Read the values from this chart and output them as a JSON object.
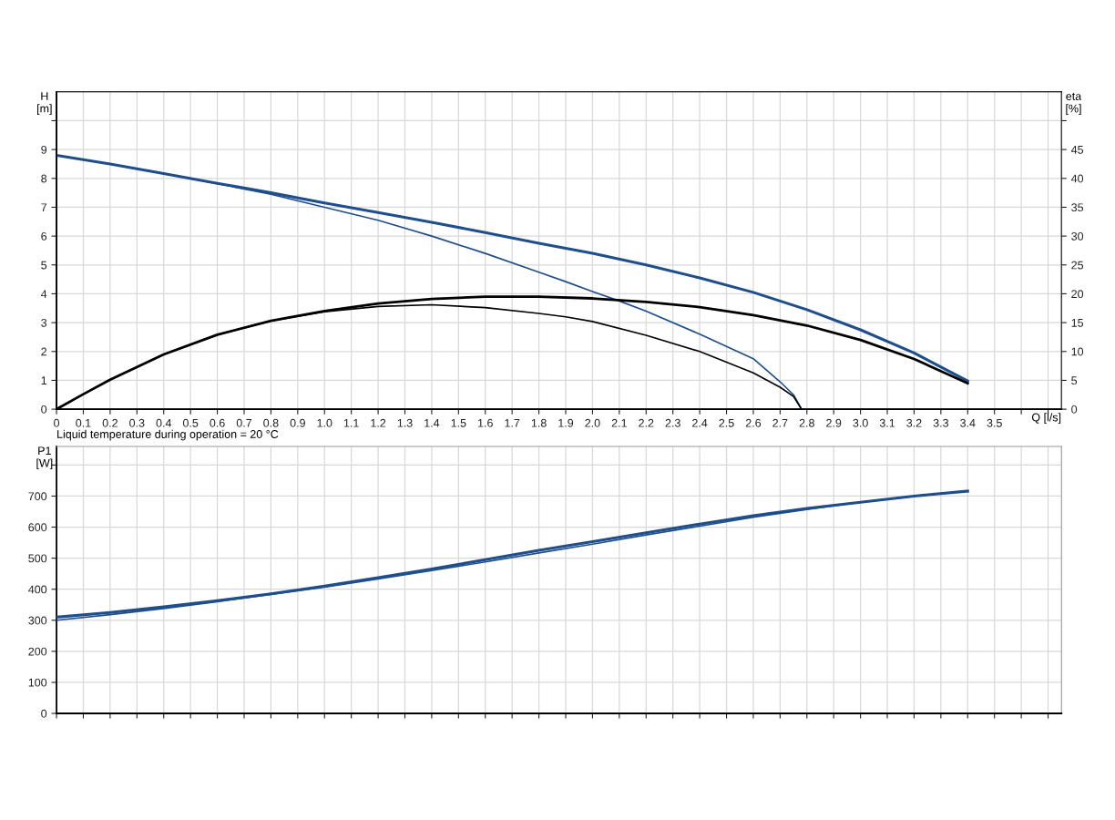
{
  "chart_data": [
    {
      "type": "line",
      "xlabel": "Q [l/s]",
      "ylabel": "H\n[m]",
      "y2label": "eta\n[%]",
      "annotations": [
        "Liquid temperature during operation = 20 °C"
      ],
      "xlim": [
        0,
        3.75
      ],
      "xticks": [
        0,
        0.1,
        0.2,
        0.3,
        0.4,
        0.5,
        0.6,
        0.7,
        0.8,
        0.9,
        {
          "value": 1.0,
          "label": "1.0"
        },
        1.1,
        1.2,
        1.3,
        1.4,
        1.5,
        1.6,
        1.7,
        1.8,
        1.9,
        {
          "value": 2.0,
          "label": "2.0"
        },
        2.1,
        2.2,
        2.3,
        2.4,
        2.5,
        2.6,
        2.7,
        2.8,
        2.9,
        {
          "value": 3.0,
          "label": "3.0"
        },
        3.1,
        3.2,
        3.3,
        3.4,
        3.5,
        {
          "value": 3.6,
          "label": null
        },
        {
          "value": 3.7,
          "label": null
        }
      ],
      "ylim": [
        0,
        11
      ],
      "yticks": [
        0,
        1,
        2,
        3,
        4,
        5,
        6,
        7,
        8,
        9,
        {
          "value": 10,
          "label": null
        }
      ],
      "y2lim": [
        0,
        55
      ],
      "y2ticks": [
        0,
        5,
        10,
        15,
        20,
        25,
        30,
        35,
        40,
        45,
        {
          "value": 50,
          "label": null
        }
      ],
      "grid": true,
      "series": [
        {
          "color": "#1f4e8c",
          "x": [
            0,
            0.2,
            0.4,
            0.6,
            0.8,
            1.0,
            1.2,
            1.4,
            1.6,
            1.8,
            2.0,
            2.2,
            2.4,
            2.6,
            2.8,
            3.0,
            3.2,
            3.4
          ],
          "values": [
            8.8,
            8.5,
            8.17,
            7.83,
            7.5,
            7.15,
            6.82,
            6.48,
            6.12,
            5.75,
            5.4,
            5.0,
            4.55,
            4.05,
            3.45,
            2.75,
            1.95,
            0.98
          ]
        },
        {
          "color": "#1f4e8c",
          "x": [
            0,
            0.2,
            0.4,
            0.6,
            0.8,
            1.0,
            1.2,
            1.4,
            1.6,
            1.8,
            1.9,
            2.0,
            2.1,
            2.2,
            2.4,
            2.6,
            2.7,
            2.75,
            2.78
          ],
          "values": [
            8.8,
            8.5,
            8.17,
            7.82,
            7.45,
            7.0,
            6.55,
            6.0,
            5.4,
            4.75,
            4.42,
            4.08,
            3.75,
            3.4,
            2.6,
            1.75,
            0.95,
            0.5,
            0
          ]
        },
        {
          "color": "#000000",
          "axis": "y2",
          "x": [
            0,
            0.1,
            0.2,
            0.4,
            0.6,
            0.8,
            1.0,
            1.2,
            1.4,
            1.6,
            1.8,
            2.0,
            2.2,
            2.4,
            2.6,
            2.8,
            3.0,
            3.2,
            3.4
          ],
          "values": [
            0,
            2.6,
            5.1,
            9.5,
            12.9,
            15.3,
            17.0,
            18.3,
            19.1,
            19.5,
            19.5,
            19.2,
            18.6,
            17.7,
            16.3,
            14.5,
            12.0,
            8.7,
            4.5
          ]
        },
        {
          "color": "#000000",
          "axis": "y2",
          "x": [
            0,
            0.1,
            0.2,
            0.4,
            0.6,
            0.8,
            1.0,
            1.2,
            1.4,
            1.6,
            1.8,
            1.9,
            2.0,
            2.2,
            2.4,
            2.6,
            2.7,
            2.75,
            2.78
          ],
          "values": [
            0,
            2.6,
            5.1,
            9.5,
            12.9,
            15.3,
            16.9,
            17.8,
            18.1,
            17.6,
            16.6,
            16.0,
            15.2,
            12.8,
            10.0,
            6.3,
            3.8,
            2.2,
            0
          ]
        }
      ]
    },
    {
      "type": "line",
      "ylabel": "P1\n[W]",
      "tick_labels": "y",
      "xlim": [
        0,
        3.75
      ],
      "xticks": [
        0,
        0.1,
        0.2,
        0.3,
        0.4,
        0.5,
        0.6,
        0.7,
        0.8,
        0.9,
        1.0,
        1.1,
        1.2,
        1.3,
        1.4,
        1.5,
        1.6,
        1.7,
        1.8,
        1.9,
        2.0,
        2.1,
        2.2,
        2.3,
        2.4,
        2.5,
        2.6,
        2.7,
        2.8,
        2.9,
        3.0,
        3.1,
        3.2,
        3.3,
        3.4,
        3.5,
        3.6,
        3.7
      ],
      "ylim": [
        0,
        860
      ],
      "yticks": [
        0,
        100,
        200,
        300,
        400,
        500,
        600,
        700,
        {
          "value": 800,
          "label": null
        }
      ],
      "grid": true,
      "series": [
        {
          "color": "#1f4e8c",
          "x": [
            0,
            0.2,
            0.4,
            0.6,
            0.8,
            1.0,
            1.2,
            1.4,
            1.6,
            1.8,
            2.0,
            2.2,
            2.4,
            2.6,
            2.8,
            3.0,
            3.2,
            3.4
          ],
          "values": [
            310,
            325,
            343,
            363,
            385,
            410,
            437,
            465,
            495,
            525,
            553,
            582,
            610,
            637,
            660,
            680,
            700,
            716
          ]
        },
        {
          "color": "#1f4e8c",
          "x": [
            0,
            0.2,
            0.4,
            0.6,
            0.8,
            1.0,
            1.2,
            1.4,
            1.6,
            1.8,
            2.0,
            2.2,
            2.4,
            2.6,
            2.8,
            3.0,
            3.2,
            3.4
          ],
          "values": [
            300,
            318,
            338,
            360,
            383,
            407,
            433,
            460,
            488,
            517,
            545,
            575,
            603,
            632,
            657,
            680,
            700,
            716
          ]
        }
      ]
    }
  ]
}
